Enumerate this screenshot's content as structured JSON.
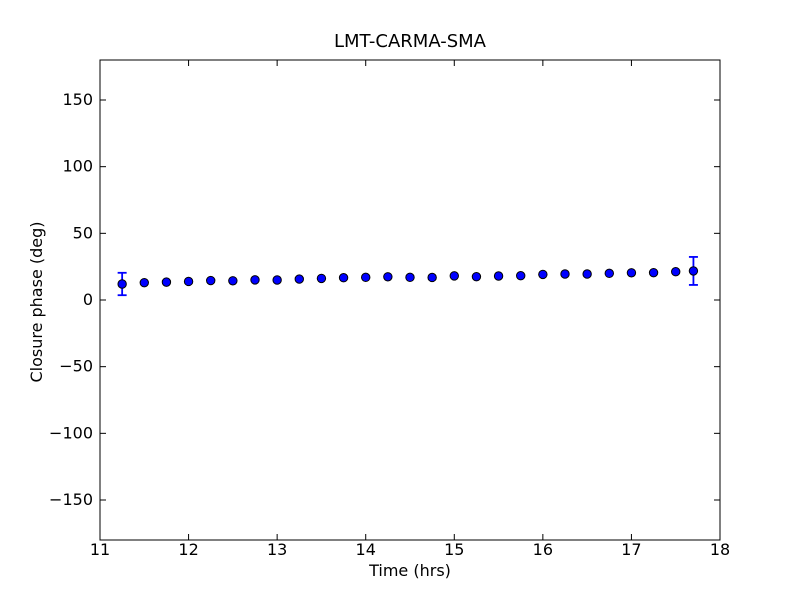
{
  "figure": {
    "title": "LMT-CARMA-SMA",
    "xlabel": "Time (hrs)",
    "ylabel": "Closure phase (deg)",
    "background_color": "#ffffff",
    "frame_color": "#000000"
  },
  "chart_data": {
    "type": "scatter",
    "title": "LMT-CARMA-SMA",
    "xlabel": "Time (hrs)",
    "ylabel": "Closure phase (deg)",
    "xlim": [
      11,
      18
    ],
    "ylim": [
      -180,
      180
    ],
    "xticks": [
      11,
      12,
      13,
      14,
      15,
      16,
      17,
      18
    ],
    "xticklabels": [
      "11",
      "12",
      "13",
      "14",
      "15",
      "16",
      "17",
      "18"
    ],
    "yticks": [
      150,
      100,
      50,
      0,
      -50,
      -100,
      -150
    ],
    "yticklabels": [
      "150",
      "100",
      "50",
      "0",
      "−50",
      "−100",
      "−150"
    ],
    "grid": false,
    "legend": null,
    "marker": {
      "shape": "circle",
      "face_color": "#0000ff",
      "edge_color": "#000000",
      "radius_px": 4.2
    },
    "error_bar_color": "#0000ff",
    "series": [
      {
        "name": "closure phase",
        "x": [
          11.25,
          11.5,
          11.75,
          12.0,
          12.25,
          12.5,
          12.75,
          13.0,
          13.25,
          13.5,
          13.75,
          14.0,
          14.25,
          14.5,
          14.75,
          15.0,
          15.25,
          15.5,
          15.75,
          16.0,
          16.25,
          16.5,
          16.75,
          17.0,
          17.25,
          17.5,
          17.7
        ],
        "y": [
          12.0,
          13.0,
          13.4,
          13.9,
          14.6,
          14.4,
          15.1,
          15.0,
          15.7,
          16.2,
          16.7,
          17.0,
          17.4,
          17.0,
          16.9,
          18.1,
          17.5,
          18.0,
          18.2,
          19.2,
          19.5,
          19.5,
          20.0,
          20.4,
          20.5,
          21.2,
          21.8
        ],
        "yerr": [
          8.4,
          0,
          0,
          0,
          0,
          0,
          0,
          0,
          0,
          0,
          0,
          0,
          0,
          0,
          0,
          0,
          0,
          0,
          0,
          0,
          0,
          0,
          0,
          0,
          0,
          0,
          10.5
        ]
      }
    ]
  }
}
